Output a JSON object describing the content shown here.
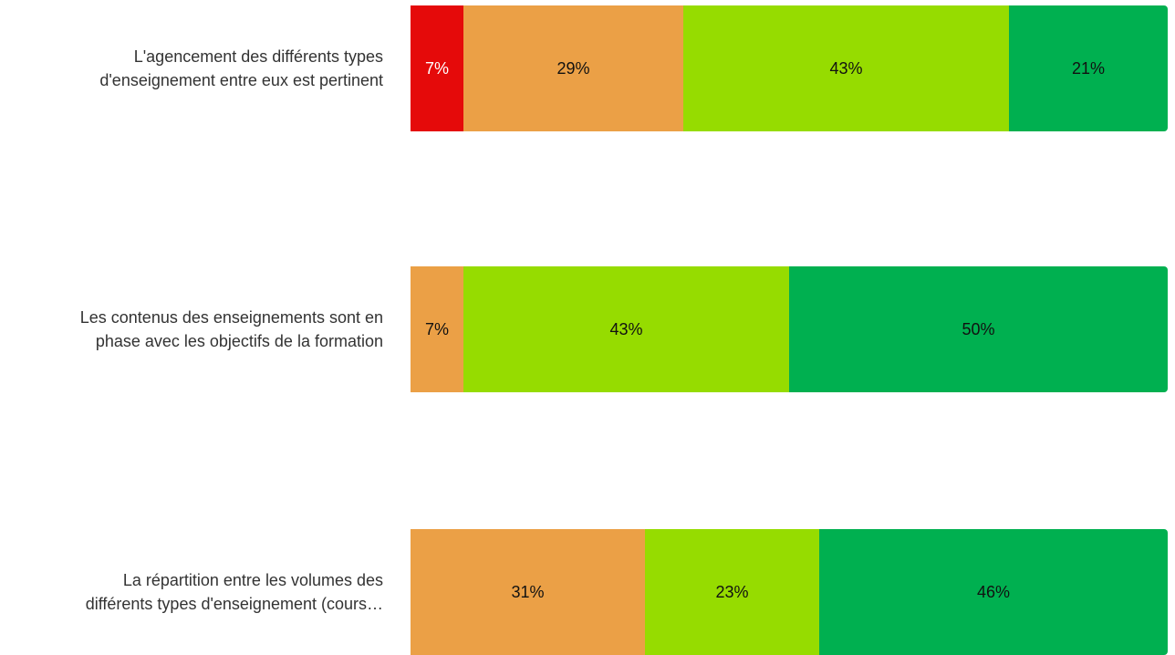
{
  "chart_data": {
    "type": "bar",
    "orientation": "horizontal",
    "stacked": true,
    "normalized": true,
    "categories": [
      "L'agencement des différents types\nd'enseignement entre eux est pertinent",
      "Les contenus des enseignements sont en\nphase avec les objectifs de la formation",
      "La répartition entre les volumes des\ndifférents types d'enseignement (cours…"
    ],
    "series": [
      {
        "color": "#e50a0a",
        "values": [
          7,
          0,
          0
        ],
        "labels": [
          "7%",
          "",
          ""
        ]
      },
      {
        "color": "#eba046",
        "values": [
          29,
          7,
          31
        ],
        "labels": [
          "29%",
          "7%",
          "31%"
        ]
      },
      {
        "color": "#96dc00",
        "values": [
          43,
          43,
          23
        ],
        "labels": [
          "43%",
          "43%",
          "23%"
        ]
      },
      {
        "color": "#00b050",
        "values": [
          21,
          50,
          46
        ],
        "labels": [
          "21%",
          "50%",
          "46%"
        ]
      }
    ],
    "xlim": [
      0,
      100
    ],
    "title": "",
    "xlabel": "",
    "ylabel": "",
    "legend": false,
    "grid": false
  }
}
